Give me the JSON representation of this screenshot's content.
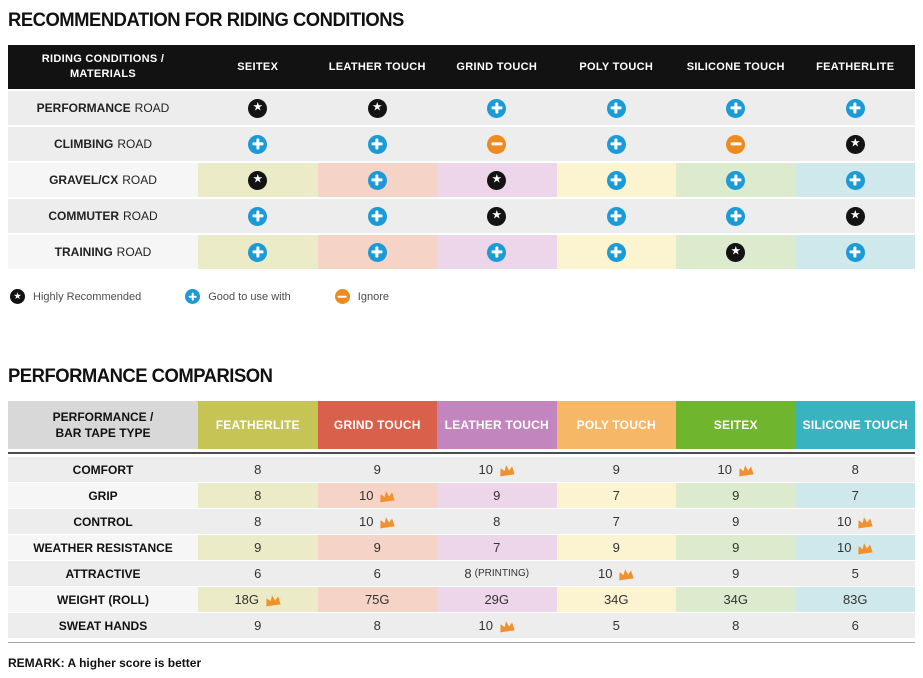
{
  "palette": {
    "header_black": "#121212",
    "row_gray": "#ededed",
    "row_label_light": "#f6f6f6",
    "plus_blue": "#1b9ad6",
    "minus_orange": "#ee8a1f",
    "star_black": "#131313",
    "crown_orange": "#f0912d",
    "corner_gray": "#d8d8d8",
    "pale": [
      "#ebebc7",
      "#f5d3c6",
      "#edd6e9",
      "#fcf3d0",
      "#dcebcd",
      "#cee8eb"
    ]
  },
  "table1": {
    "title": "RECOMMENDATION FOR RIDING CONDITIONS",
    "corner": [
      "RIDING CONDITIONS /",
      "MATERIALS"
    ],
    "columns": [
      "SEITEX",
      "LEATHER TOUCH",
      "GRIND TOUCH",
      "POLY TOUCH",
      "SILICONE TOUCH",
      "FEATHERLITE"
    ],
    "rows": [
      {
        "label_bold": "PERFORMANCE",
        "label_rest": "ROAD",
        "colored": false,
        "cells": [
          "star",
          "star",
          "plus",
          "plus",
          "plus",
          "plus"
        ]
      },
      {
        "label_bold": "CLIMBING",
        "label_rest": "ROAD",
        "colored": false,
        "cells": [
          "plus",
          "plus",
          "minus",
          "plus",
          "minus",
          "star"
        ]
      },
      {
        "label_bold": "GRAVEL/CX",
        "label_rest": "ROAD",
        "colored": true,
        "cells": [
          "star",
          "plus",
          "star",
          "plus",
          "plus",
          "plus"
        ]
      },
      {
        "label_bold": "COMMUTER",
        "label_rest": "ROAD",
        "colored": false,
        "cells": [
          "plus",
          "plus",
          "star",
          "plus",
          "plus",
          "star"
        ]
      },
      {
        "label_bold": "TRAINING",
        "label_rest": "ROAD",
        "colored": true,
        "cells": [
          "plus",
          "plus",
          "plus",
          "plus",
          "star",
          "plus"
        ]
      }
    ],
    "legend": [
      {
        "icon": "star",
        "label": "Highly Recommended"
      },
      {
        "icon": "plus",
        "label": "Good to use with"
      },
      {
        "icon": "minus",
        "label": "Ignore"
      }
    ]
  },
  "table2": {
    "title": "PERFORMANCE COMPARISON",
    "corner": [
      "PERFORMANCE /",
      "BAR TAPE TYPE"
    ],
    "columns": [
      {
        "label": "FEATHERLITE",
        "color": "#c6c455"
      },
      {
        "label": "GRIND TOUCH",
        "color": "#d9604a"
      },
      {
        "label": "LEATHER TOUCH",
        "color": "#c285bd"
      },
      {
        "label": "POLY TOUCH",
        "color": "#f6b766"
      },
      {
        "label": "SEITEX",
        "color": "#6fb52e"
      },
      {
        "label": "SILICONE TOUCH",
        "color": "#3ab3c0"
      }
    ],
    "rows": [
      {
        "label": "COMFORT",
        "colored": false,
        "cells": [
          {
            "value": "8"
          },
          {
            "value": "9"
          },
          {
            "value": "10",
            "crown": true
          },
          {
            "value": "9"
          },
          {
            "value": "10",
            "crown": true
          },
          {
            "value": "8"
          }
        ]
      },
      {
        "label": "GRIP",
        "colored": true,
        "cells": [
          {
            "value": "8"
          },
          {
            "value": "10",
            "crown": true
          },
          {
            "value": "9"
          },
          {
            "value": "7"
          },
          {
            "value": "9"
          },
          {
            "value": "7"
          }
        ]
      },
      {
        "label": "CONTROL",
        "colored": false,
        "cells": [
          {
            "value": "8"
          },
          {
            "value": "10",
            "crown": true
          },
          {
            "value": "8"
          },
          {
            "value": "7"
          },
          {
            "value": "9"
          },
          {
            "value": "10",
            "crown": true
          }
        ]
      },
      {
        "label": "WEATHER RESISTANCE",
        "colored": true,
        "cells": [
          {
            "value": "9"
          },
          {
            "value": "9"
          },
          {
            "value": "7"
          },
          {
            "value": "9"
          },
          {
            "value": "9"
          },
          {
            "value": "10",
            "crown": true
          }
        ]
      },
      {
        "label": "ATTRACTIVE",
        "colored": false,
        "cells": [
          {
            "value": "6"
          },
          {
            "value": "6"
          },
          {
            "value": "8",
            "suffix": "(PRINTING)"
          },
          {
            "value": "10",
            "crown": true
          },
          {
            "value": "9"
          },
          {
            "value": "5"
          }
        ]
      },
      {
        "label": "WEIGHT (ROLL)",
        "colored": true,
        "cells": [
          {
            "value": "18G",
            "crown": true
          },
          {
            "value": "75G"
          },
          {
            "value": "29G"
          },
          {
            "value": "34G"
          },
          {
            "value": "34G"
          },
          {
            "value": "83G"
          }
        ]
      },
      {
        "label": "SWEAT HANDS",
        "colored": false,
        "cells": [
          {
            "value": "9"
          },
          {
            "value": "8"
          },
          {
            "value": "10",
            "crown": true
          },
          {
            "value": "5"
          },
          {
            "value": "8"
          },
          {
            "value": "6"
          }
        ]
      }
    ],
    "remark": "REMARK: A higher score is better"
  },
  "chart_data": [
    {
      "type": "table",
      "title": "RECOMMENDATION FOR RIDING CONDITIONS",
      "columns": [
        "RIDING CONDITIONS / MATERIALS",
        "SEITEX",
        "LEATHER TOUCH",
        "GRIND TOUCH",
        "POLY TOUCH",
        "SILICONE TOUCH",
        "FEATHERLITE"
      ],
      "rows": [
        [
          "PERFORMANCE ROAD",
          "highly-recommended",
          "highly-recommended",
          "good-to-use-with",
          "good-to-use-with",
          "good-to-use-with",
          "good-to-use-with"
        ],
        [
          "CLIMBING ROAD",
          "good-to-use-with",
          "good-to-use-with",
          "ignore",
          "good-to-use-with",
          "ignore",
          "highly-recommended"
        ],
        [
          "GRAVEL/CX ROAD",
          "highly-recommended",
          "good-to-use-with",
          "highly-recommended",
          "good-to-use-with",
          "good-to-use-with",
          "good-to-use-with"
        ],
        [
          "COMMUTER ROAD",
          "good-to-use-with",
          "good-to-use-with",
          "highly-recommended",
          "good-to-use-with",
          "good-to-use-with",
          "highly-recommended"
        ],
        [
          "TRAINING ROAD",
          "good-to-use-with",
          "good-to-use-with",
          "good-to-use-with",
          "good-to-use-with",
          "highly-recommended",
          "good-to-use-with"
        ]
      ],
      "legend": [
        "Highly Recommended",
        "Good to use with",
        "Ignore"
      ]
    },
    {
      "type": "table",
      "title": "PERFORMANCE COMPARISON",
      "columns": [
        "PERFORMANCE / BAR TAPE TYPE",
        "FEATHERLITE",
        "GRIND TOUCH",
        "LEATHER TOUCH",
        "POLY TOUCH",
        "SEITEX",
        "SILICONE TOUCH"
      ],
      "rows": [
        [
          "COMFORT",
          "8",
          "9",
          "10 (best)",
          "9",
          "10 (best)",
          "8"
        ],
        [
          "GRIP",
          "8",
          "10 (best)",
          "9",
          "7",
          "9",
          "7"
        ],
        [
          "CONTROL",
          "8",
          "10 (best)",
          "8",
          "7",
          "9",
          "10 (best)"
        ],
        [
          "WEATHER RESISTANCE",
          "9",
          "9",
          "7",
          "9",
          "9",
          "10 (best)"
        ],
        [
          "ATTRACTIVE",
          "6",
          "6",
          "8 (PRINTING)",
          "10 (best)",
          "9",
          "5"
        ],
        [
          "WEIGHT (ROLL)",
          "18G (best)",
          "75G",
          "29G",
          "34G",
          "34G",
          "83G"
        ],
        [
          "SWEAT HANDS",
          "9",
          "8",
          "10 (best)",
          "5",
          "8",
          "6"
        ]
      ],
      "note": "REMARK: A higher score is better"
    }
  ]
}
